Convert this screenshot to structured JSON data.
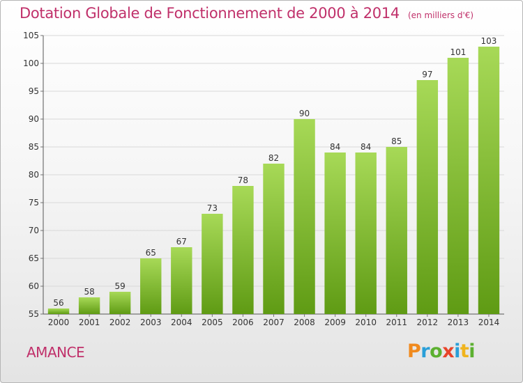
{
  "title": "Dotation Globale de Fonctionnement de 2000 à 2014",
  "subtitle": "(en milliers d'€)",
  "commune": "AMANCE",
  "brand": {
    "letters": [
      "P",
      "r",
      "o",
      "x",
      "i",
      "t",
      "i"
    ],
    "colors": [
      "#f08a1e",
      "#2a9fd8",
      "#5cb030",
      "#e8442a",
      "#2a9fd8",
      "#f0b41e",
      "#5cb030"
    ]
  },
  "colors": {
    "title": "#c0306a",
    "bar_light": "#a7d957",
    "bar_dark": "#5f9b14",
    "grid": "#d8d8d8"
  },
  "chart_data": {
    "type": "bar",
    "categories": [
      "2000",
      "2001",
      "2002",
      "2003",
      "2004",
      "2005",
      "2006",
      "2007",
      "2008",
      "2009",
      "2010",
      "2011",
      "2012",
      "2013",
      "2014"
    ],
    "values": [
      56,
      58,
      59,
      65,
      67,
      73,
      78,
      82,
      90,
      84,
      84,
      85,
      97,
      101,
      103
    ],
    "ylim": [
      55,
      105
    ],
    "yticks": [
      55,
      60,
      65,
      70,
      75,
      80,
      85,
      90,
      95,
      100,
      105
    ],
    "grid": true,
    "xlabel": "",
    "ylabel": ""
  }
}
